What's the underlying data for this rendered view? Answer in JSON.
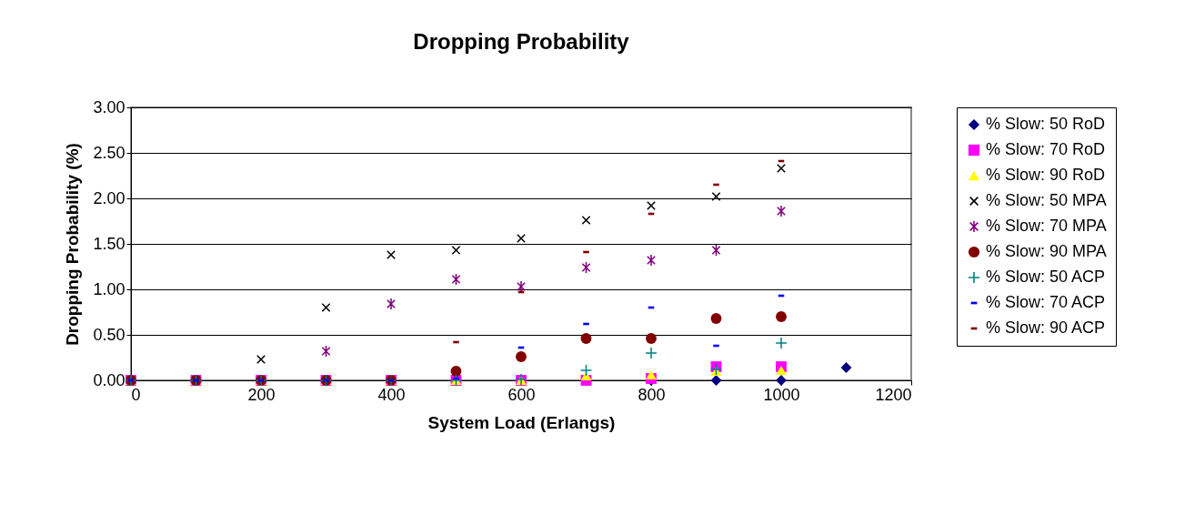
{
  "chart_data": {
    "type": "scatter",
    "title": "Dropping Probability",
    "xlabel": "System Load (Erlangs)",
    "ylabel": "Dropping Probability (%)",
    "xlim": [
      0,
      1200
    ],
    "xticks": [
      0,
      200,
      400,
      600,
      800,
      1000,
      1200
    ],
    "ylim": [
      0,
      3
    ],
    "yticks": [
      {
        "value": 0,
        "label": "0.00"
      },
      {
        "value": 0.5,
        "label": "0.50"
      },
      {
        "value": 1,
        "label": "1.00"
      },
      {
        "value": 1.5,
        "label": "1.50"
      },
      {
        "value": 2,
        "label": "2.00"
      },
      {
        "value": 2.5,
        "label": "2.50"
      },
      {
        "value": 3,
        "label": "3.00"
      }
    ],
    "grid": "y",
    "legend": "right",
    "x": [
      0,
      100,
      200,
      300,
      400,
      500,
      600,
      700,
      800,
      900,
      1000
    ],
    "series": [
      {
        "name": "% Slow: 50 RoD",
        "color": "#000080",
        "marker": "diamond",
        "x": [
          800,
          900,
          1000,
          1100
        ],
        "values": [
          0,
          0,
          0,
          0.14
        ]
      },
      {
        "name": "% Slow: 70 RoD",
        "color": "#ff00ff",
        "marker": "square",
        "values": [
          0,
          0,
          0,
          0,
          0,
          0,
          0,
          0,
          0.02,
          0.15,
          0.15
        ]
      },
      {
        "name": "% Slow: 90 RoD",
        "color": "#ffff00",
        "marker": "triangle",
        "values": [
          0,
          0,
          0,
          0,
          0,
          0,
          0,
          0.05,
          0.06,
          0.1,
          0.11
        ]
      },
      {
        "name": "% Slow: 50 MPA",
        "color": "#000000",
        "marker": "x",
        "values": [
          0,
          0,
          0.23,
          0.8,
          1.38,
          1.43,
          1.56,
          1.76,
          1.92,
          2.02,
          2.33
        ]
      },
      {
        "name": "% Slow: 70 MPA",
        "color": "#800080",
        "marker": "cross",
        "values": [
          0,
          0,
          0,
          0.32,
          0.84,
          1.11,
          1.03,
          1.24,
          1.32,
          1.43,
          1.86
        ]
      },
      {
        "name": "% Slow: 90 MPA",
        "color": "#800000",
        "marker": "circle",
        "values": [
          0,
          0,
          0,
          0,
          0,
          0.1,
          0.26,
          0.46,
          0.46,
          0.68,
          0.7
        ]
      },
      {
        "name": "% Slow: 50 ACP",
        "color": "#008080",
        "marker": "plus",
        "values": [
          0,
          0,
          0,
          0,
          0,
          0,
          0.01,
          0.11,
          0.3,
          0.12,
          0.41
        ]
      },
      {
        "name": "% Slow: 70 ACP",
        "color": "#0000ff",
        "values": [
          0,
          0,
          0,
          0,
          0,
          0.02,
          0.36,
          0.62,
          0.8,
          0.38,
          0.93
        ]
      },
      {
        "name": "% Slow: 90 ACP",
        "color": "#800000",
        "values": [
          null,
          null,
          null,
          null,
          0.03,
          0.42,
          0.97,
          1.41,
          1.83,
          2.15,
          2.41
        ]
      }
    ]
  }
}
